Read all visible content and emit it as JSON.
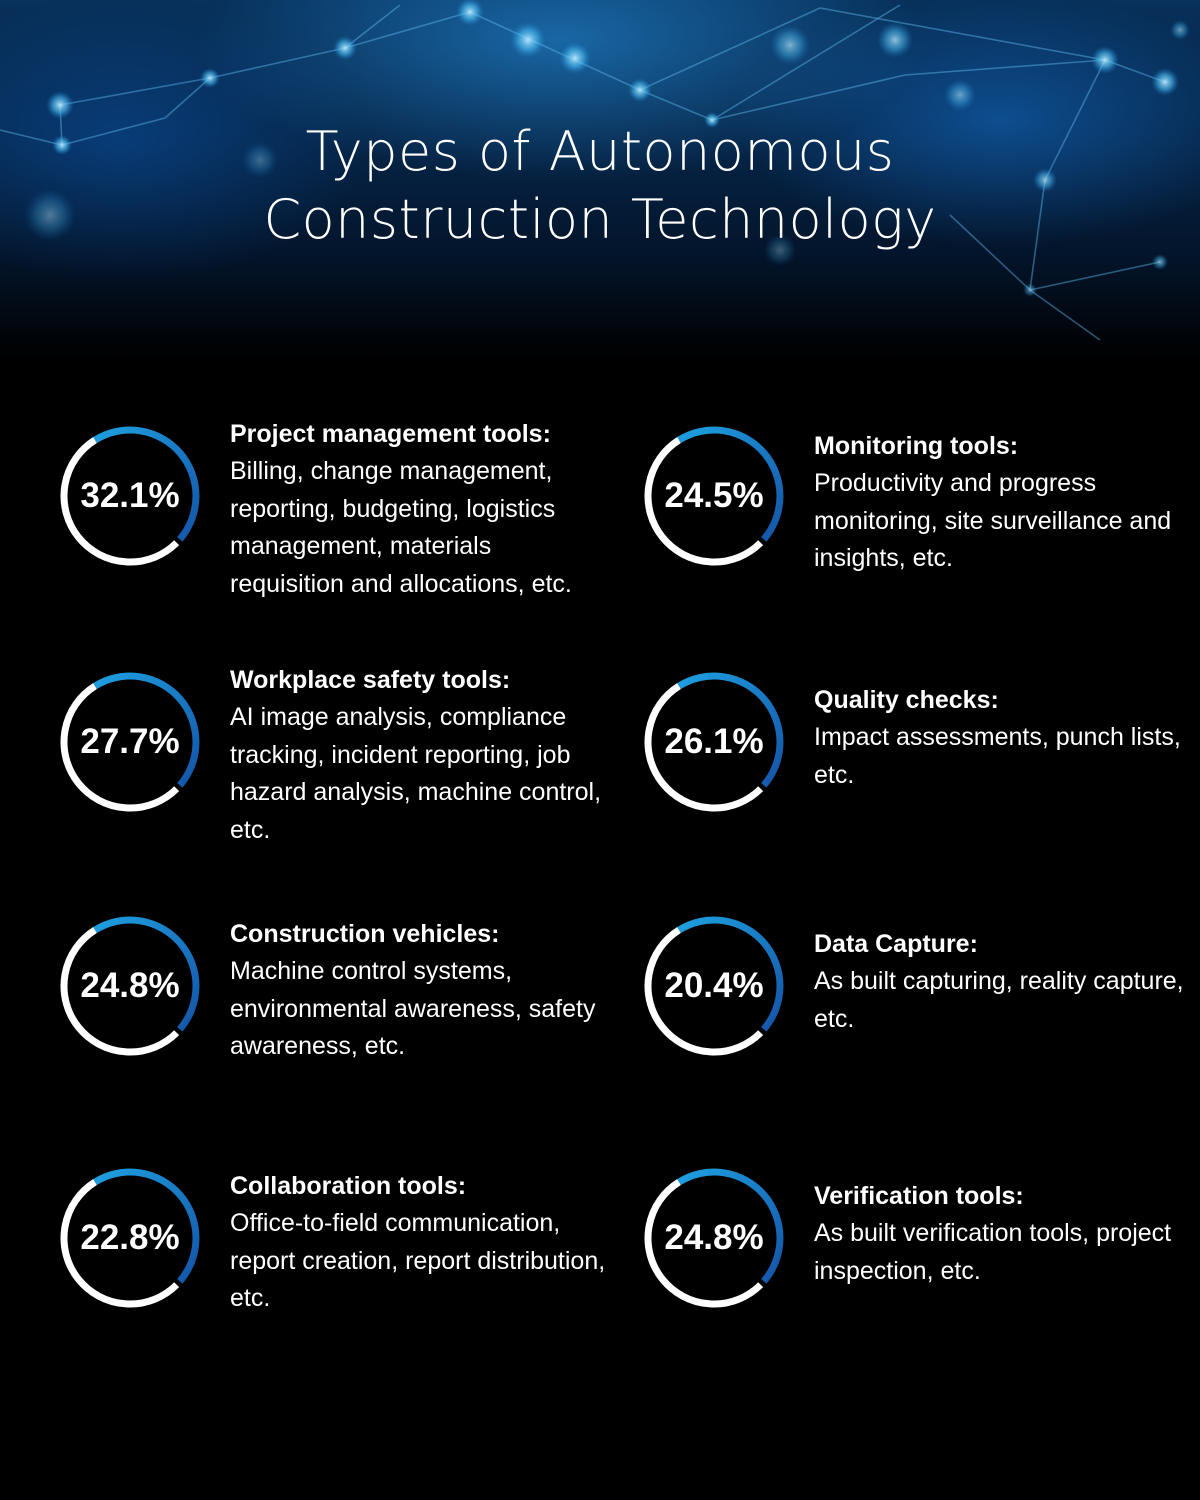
{
  "header": {
    "title_line1": "Types of Autonomous",
    "title_line2": "Construction Technology"
  },
  "colors": {
    "ring_white": "#ffffff",
    "ring_blue_light": "#1ea0e0",
    "ring_blue_dark": "#1554a8",
    "background": "#000000"
  },
  "items": [
    {
      "percent": "32.1%",
      "title": "Project management tools:",
      "description": "Billing, change management, reporting, budgeting, logistics management, materials requisition and allocations, etc."
    },
    {
      "percent": "24.5%",
      "title": "Monitoring tools:",
      "description": "Productivity and progress monitoring, site surveillance and insights, etc."
    },
    {
      "percent": "27.7%",
      "title": "Workplace safety tools:",
      "description": "AI image analysis, compliance tracking, incident reporting, job hazard analysis, machine control, etc."
    },
    {
      "percent": "26.1%",
      "title": "Quality checks:",
      "description": "Impact assessments, punch lists, etc."
    },
    {
      "percent": "24.8%",
      "title": "Construction vehicles:",
      "description": "Machine control systems, environmental awareness, safety awareness, etc."
    },
    {
      "percent": "20.4%",
      "title": "Data Capture:",
      "description": "As built capturing, reality capture, etc."
    },
    {
      "percent": "22.8%",
      "title": "Collaboration tools:",
      "description": "Office-to-field communication, report creation, report distribution, etc."
    },
    {
      "percent": "24.8%",
      "title": "Verification tools:",
      "description": "As built verification tools, project inspection, etc."
    }
  ]
}
